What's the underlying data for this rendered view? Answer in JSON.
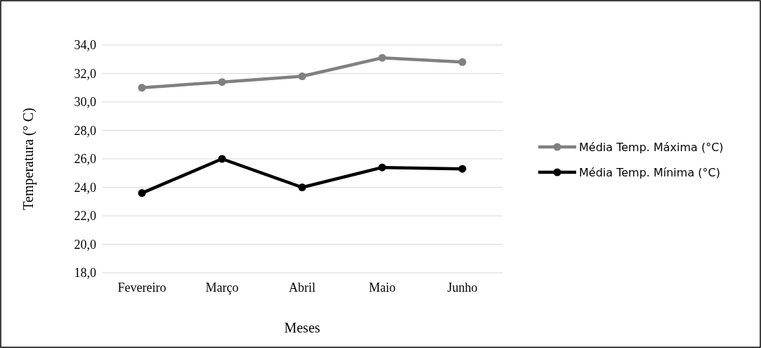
{
  "chart_data": {
    "type": "line",
    "xlabel": "Meses",
    "ylabel": "Temperatura (° C)",
    "categories": [
      "Fevereiro",
      "Março",
      "Abril",
      "Maio",
      "Junho"
    ],
    "series": [
      {
        "name": "Média Temp. Máxima (°C)",
        "color": "#808080",
        "values": [
          31.0,
          31.4,
          31.8,
          33.1,
          32.8
        ]
      },
      {
        "name": "Média Temp. Mínima (°C)",
        "color": "#000000",
        "values": [
          23.6,
          26.0,
          24.0,
          25.4,
          25.3
        ]
      }
    ],
    "ylim": [
      18,
      34
    ],
    "yticks": [
      {
        "value": 18,
        "label": "18,0"
      },
      {
        "value": 20,
        "label": "20,0"
      },
      {
        "value": 22,
        "label": "22,0"
      },
      {
        "value": 24,
        "label": "24,0"
      },
      {
        "value": 26,
        "label": "26,0"
      },
      {
        "value": 28,
        "label": "28,0"
      },
      {
        "value": 30,
        "label": "30,0"
      },
      {
        "value": 32,
        "label": "32,0"
      },
      {
        "value": 34,
        "label": "34,0"
      }
    ],
    "grid": "y",
    "legend": "right",
    "marker": "circle",
    "line_style": "solid"
  }
}
